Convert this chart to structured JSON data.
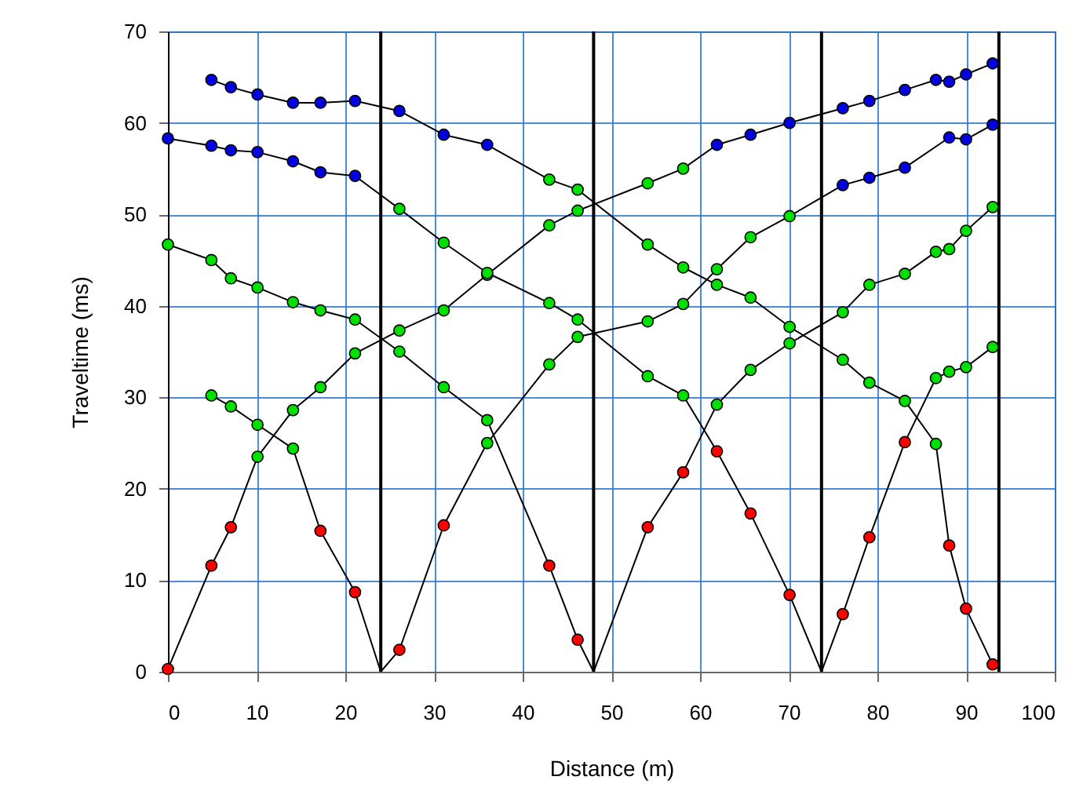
{
  "chart_data": {
    "type": "line",
    "xlabel": "Distance (m)",
    "ylabel": "Traveltime (ms)",
    "xlim": [
      0,
      100
    ],
    "xticks": [
      0,
      10,
      20,
      30,
      40,
      50,
      60,
      70,
      80,
      90,
      100
    ],
    "ylim": [
      0,
      70
    ],
    "yticks": [
      0,
      10,
      20,
      30,
      40,
      50,
      60,
      70
    ],
    "grid": true,
    "marker": "circle",
    "line_style": "solid",
    "series": [
      {
        "color": "#000000",
        "x": [
          0,
          4.9,
          7.1,
          10.1,
          14.1,
          17.2,
          21.1,
          26.1,
          31.1,
          36.0,
          43.0,
          46.2,
          54.1,
          58.1,
          61.9,
          65.7,
          70.1,
          76.1,
          79.1,
          83.1,
          86.6,
          88.1,
          90.0,
          93.0
        ],
        "values": [
          0.3,
          11.6,
          15.8,
          23.5,
          28.6,
          31.1,
          34.8,
          37.3,
          39.5,
          43.4,
          48.8,
          50.4,
          53.4,
          55.0,
          57.6,
          58.7,
          60.0,
          61.6,
          62.4,
          63.6,
          64.7,
          64.5,
          65.3,
          66.5
        ],
        "colors": [
          "#ff0000",
          "#ff0000",
          "#ff0000",
          "#00e000",
          "#00e000",
          "#00e000",
          "#00e000",
          "#00e000",
          "#00e000",
          "#00e000",
          "#00e000",
          "#00e000",
          "#00e000",
          "#00e000",
          "#0000e0",
          "#0000e0",
          "#0000e0",
          "#0000e0",
          "#0000e0",
          "#0000e0",
          "#0000e0",
          "#0000e0",
          "#0000e0",
          "#0000e0"
        ]
      },
      {
        "color": "#000000",
        "x": [
          4.9,
          7.1,
          10.1,
          14.1,
          17.2,
          21.1,
          24
        ],
        "values": [
          30.2,
          29.0,
          27.0,
          24.4,
          15.4,
          8.7,
          0
        ],
        "colors": [
          "#00e000",
          "#00e000",
          "#00e000",
          "#00e000",
          "#ff0000",
          "#ff0000",
          null
        ]
      },
      {
        "color": "#000000",
        "x": [
          24,
          26.1,
          31.1,
          36.0,
          43.0,
          46.2,
          54.1,
          58.1,
          61.9,
          65.7,
          70.1,
          76.1,
          79.1,
          83.1,
          88.1,
          90.0,
          93.0
        ],
        "values": [
          0,
          2.4,
          16.0,
          25.0,
          33.6,
          36.6,
          38.3,
          40.2,
          44.0,
          47.5,
          49.8,
          53.2,
          54.0,
          55.1,
          58.4,
          58.2,
          59.8
        ],
        "colors": [
          null,
          "#ff0000",
          "#ff0000",
          "#00e000",
          "#00e000",
          "#00e000",
          "#00e000",
          "#00e000",
          "#00e000",
          "#00e000",
          "#00e000",
          "#0000e0",
          "#0000e0",
          "#0000e0",
          "#0000e0",
          "#0000e0",
          "#0000e0"
        ]
      },
      {
        "color": "#000000",
        "x": [
          0,
          4.9,
          7.1,
          10.1,
          14.1,
          17.2,
          21.1,
          26.1,
          31.1,
          36.0,
          43.0,
          46.2,
          48
        ],
        "values": [
          46.7,
          45.0,
          43.0,
          42.0,
          40.4,
          39.5,
          38.5,
          35.0,
          31.1,
          27.5,
          11.6,
          3.5,
          0
        ],
        "colors": [
          "#00e000",
          "#00e000",
          "#00e000",
          "#00e000",
          "#00e000",
          "#00e000",
          "#00e000",
          "#00e000",
          "#00e000",
          "#00e000",
          "#ff0000",
          "#ff0000",
          null
        ]
      },
      {
        "color": "#000000",
        "x": [
          48,
          54.1,
          58.1,
          61.9,
          65.7,
          70.1,
          76.1,
          79.1,
          83.1,
          86.6,
          88.1,
          90.0,
          93.0
        ],
        "values": [
          0,
          15.8,
          21.8,
          29.2,
          33.0,
          35.9,
          39.3,
          42.3,
          43.5,
          45.9,
          46.2,
          48.2,
          50.8
        ],
        "colors": [
          null,
          "#ff0000",
          "#ff0000",
          "#00e000",
          "#00e000",
          "#00e000",
          "#00e000",
          "#00e000",
          "#00e000",
          "#00e000",
          "#00e000",
          "#00e000",
          "#00e000"
        ]
      },
      {
        "color": "#000000",
        "x": [
          0,
          4.9,
          7.1,
          10.1,
          14.1,
          17.2,
          21.1,
          26.1,
          31.1,
          36.0,
          43.0,
          46.2,
          54.1,
          58.1,
          61.9,
          65.7,
          70.1,
          73.7
        ],
        "values": [
          58.3,
          57.5,
          57.0,
          56.8,
          55.8,
          54.6,
          54.2,
          50.6,
          46.9,
          43.6,
          40.3,
          38.5,
          32.3,
          30.2,
          24.1,
          17.3,
          8.4,
          0
        ],
        "colors": [
          "#0000e0",
          "#0000e0",
          "#0000e0",
          "#0000e0",
          "#0000e0",
          "#0000e0",
          "#0000e0",
          "#00e000",
          "#00e000",
          "#00e000",
          "#00e000",
          "#00e000",
          "#00e000",
          "#00e000",
          "#ff0000",
          "#ff0000",
          "#ff0000",
          null
        ]
      },
      {
        "color": "#000000",
        "x": [
          73.7,
          76.1,
          79.1,
          83.1,
          86.6,
          88.1,
          90.0,
          93.0
        ],
        "values": [
          0,
          6.3,
          14.7,
          25.1,
          32.1,
          32.8,
          33.3,
          35.5
        ],
        "colors": [
          null,
          "#ff0000",
          "#ff0000",
          "#ff0000",
          "#00e000",
          "#00e000",
          "#00e000",
          "#00e000"
        ]
      },
      {
        "color": "#000000",
        "x": [
          93.0,
          90.0,
          88.1,
          86.6,
          83.1,
          79.1,
          76.1,
          70.1,
          65.7,
          61.9,
          58.1,
          54.1,
          46.2,
          43.0,
          36.0,
          31.1,
          26.1,
          21.1,
          17.2,
          14.1,
          10.1,
          7.1,
          4.9
        ],
        "values": [
          0.8,
          6.9,
          13.8,
          24.9,
          29.6,
          31.6,
          34.1,
          37.7,
          40.9,
          42.3,
          44.2,
          46.7,
          52.7,
          53.8,
          57.6,
          58.7,
          61.3,
          62.4,
          62.2,
          62.2,
          63.1,
          63.9,
          64.7
        ],
        "colors": [
          "#ff0000",
          "#ff0000",
          "#ff0000",
          "#00e000",
          "#00e000",
          "#00e000",
          "#00e000",
          "#00e000",
          "#00e000",
          "#00e000",
          "#00e000",
          "#00e000",
          "#00e000",
          "#00e000",
          "#0000e0",
          "#0000e0",
          "#0000e0",
          "#0000e0",
          "#0000e0",
          "#0000e0",
          "#0000e0",
          "#0000e0",
          "#0000e0"
        ]
      }
    ],
    "ref_lines": [
      {
        "axis": "x",
        "value": 24,
        "color": "#000000"
      },
      {
        "axis": "x",
        "value": 48,
        "color": "#000000"
      },
      {
        "axis": "x",
        "value": 73.7,
        "color": "#000000"
      },
      {
        "axis": "x",
        "value": 93.7,
        "color": "#000000"
      }
    ]
  }
}
